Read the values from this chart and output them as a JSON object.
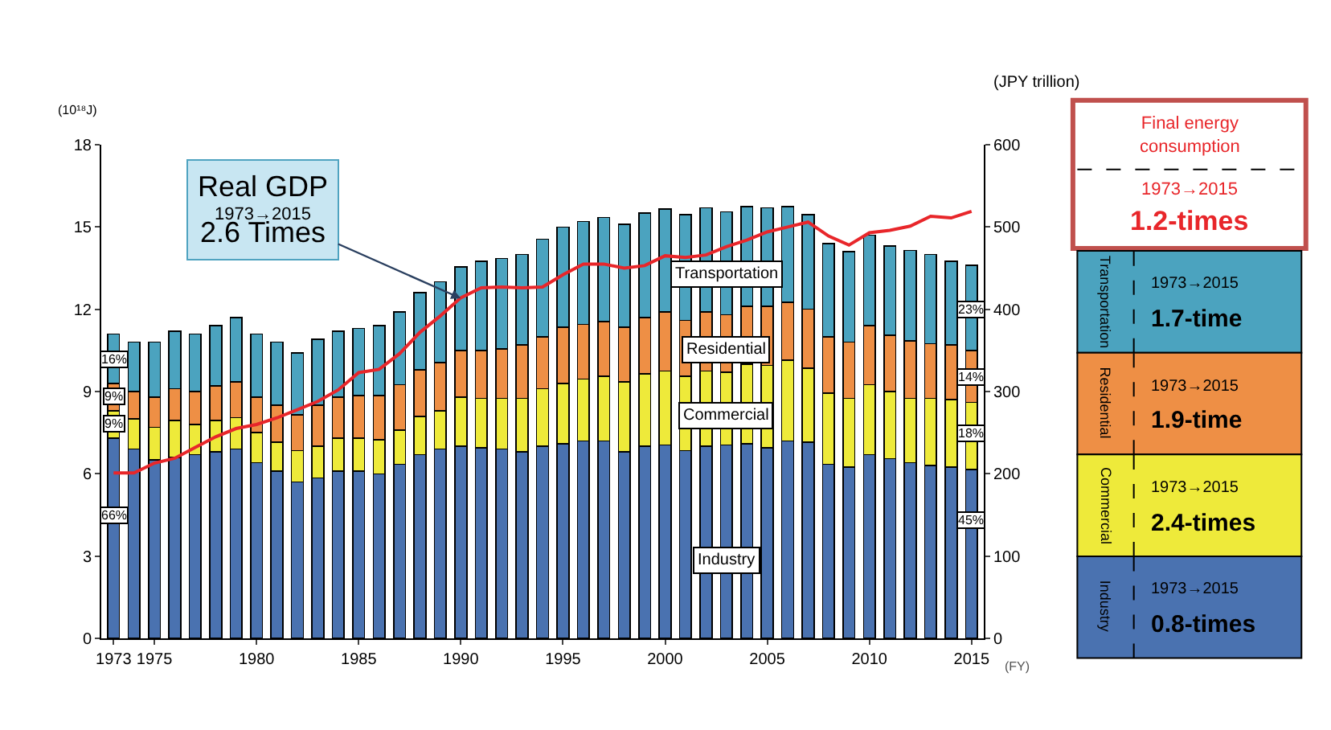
{
  "chart_data": {
    "type": "bar",
    "stacked": true,
    "ylabel": "(10¹⁸J)",
    "y2label": "(JPY trillion)",
    "xlabel": "(FY)",
    "x": [
      1973,
      1974,
      1975,
      1976,
      1977,
      1978,
      1979,
      1980,
      1981,
      1982,
      1983,
      1984,
      1985,
      1986,
      1987,
      1988,
      1989,
      1990,
      1991,
      1992,
      1993,
      1994,
      1995,
      1996,
      1997,
      1998,
      1999,
      2000,
      2001,
      2002,
      2003,
      2004,
      2005,
      2006,
      2007,
      2008,
      2009,
      2010,
      2011,
      2012,
      2013,
      2014,
      2015
    ],
    "series": [
      {
        "name": "Industry",
        "color": "#4a72b0",
        "values": [
          7.3,
          6.9,
          6.5,
          6.6,
          6.7,
          6.8,
          6.9,
          6.4,
          6.1,
          5.7,
          5.85,
          6.1,
          6.1,
          6.0,
          6.35,
          6.7,
          6.9,
          7.0,
          6.95,
          6.9,
          6.8,
          7.0,
          7.1,
          7.2,
          7.2,
          6.8,
          7.0,
          7.05,
          6.85,
          7.0,
          7.05,
          7.1,
          6.95,
          7.2,
          7.15,
          6.35,
          6.25,
          6.7,
          6.55,
          6.4,
          6.3,
          6.25,
          6.15
        ]
      },
      {
        "name": "Commercial",
        "color": "#eeea3a",
        "values": [
          1.0,
          1.1,
          1.2,
          1.35,
          1.1,
          1.15,
          1.15,
          1.1,
          1.05,
          1.15,
          1.15,
          1.2,
          1.2,
          1.25,
          1.25,
          1.4,
          1.4,
          1.8,
          1.8,
          1.85,
          1.95,
          2.1,
          2.2,
          2.25,
          2.35,
          2.55,
          2.65,
          2.7,
          2.7,
          2.75,
          2.65,
          2.9,
          3.0,
          2.95,
          2.7,
          2.6,
          2.5,
          2.55,
          2.45,
          2.35,
          2.45,
          2.45,
          2.45
        ]
      },
      {
        "name": "Residential",
        "color": "#ee8f45",
        "values": [
          1.0,
          1.0,
          1.1,
          1.15,
          1.2,
          1.25,
          1.3,
          1.3,
          1.35,
          1.3,
          1.5,
          1.5,
          1.55,
          1.6,
          1.65,
          1.7,
          1.75,
          1.7,
          1.75,
          1.8,
          1.95,
          1.9,
          2.05,
          2.0,
          2.0,
          2.0,
          2.05,
          2.15,
          2.05,
          2.15,
          2.1,
          2.1,
          2.15,
          2.1,
          2.15,
          2.05,
          2.05,
          2.15,
          2.05,
          2.1,
          2.0,
          2.0,
          1.9
        ]
      },
      {
        "name": "Transportation",
        "color": "#4ba3bf",
        "values": [
          1.8,
          1.8,
          2.0,
          2.1,
          2.1,
          2.2,
          2.35,
          2.3,
          2.3,
          2.25,
          2.4,
          2.4,
          2.45,
          2.55,
          2.65,
          2.8,
          2.95,
          3.05,
          3.25,
          3.3,
          3.3,
          3.55,
          3.65,
          3.75,
          3.8,
          3.75,
          3.8,
          3.75,
          3.85,
          3.8,
          3.75,
          3.65,
          3.6,
          3.5,
          3.45,
          3.4,
          3.3,
          3.3,
          3.25,
          3.3,
          3.25,
          3.05,
          3.1
        ]
      },
      {
        "type": "line",
        "axis": "y2",
        "color": "#e8262a",
        "values": [
          201,
          201,
          213,
          219,
          232,
          245,
          255,
          260,
          268,
          278,
          288,
          302,
          323,
          327,
          346,
          372,
          392,
          414,
          426,
          427,
          426,
          427,
          442,
          455,
          455,
          450,
          453,
          465,
          463,
          466,
          476,
          484,
          494,
          500,
          506,
          489,
          478,
          493,
          496,
          501,
          513,
          511,
          519
        ]
      }
    ],
    "xlim": [
      1972.4,
      2015.6
    ],
    "xticks": [
      1973,
      1975,
      1980,
      1985,
      1990,
      1995,
      2000,
      2005,
      2010,
      2015
    ],
    "ylim": [
      0,
      18
    ],
    "yticks": [
      0,
      3,
      6,
      9,
      12,
      15,
      18
    ],
    "y2lim": [
      0,
      600
    ],
    "y2ticks": [
      0,
      100,
      200,
      300,
      400,
      500,
      600
    ],
    "legend": false,
    "marker": "none",
    "line_style": "solid",
    "annotations": [
      {
        "text": "Real GDP\n1973→2015\n2.6 Times",
        "x": 1990,
        "y": 12.4
      },
      {
        "text": "16%",
        "x": 1973,
        "y": 10.2
      },
      {
        "text": "9%",
        "x": 1973,
        "y": 8.8
      },
      {
        "text": "9%",
        "x": 1973,
        "y": 7.8
      },
      {
        "text": "66%",
        "x": 1973,
        "y": 4.5
      },
      {
        "text": "23%",
        "x": 2015,
        "y": 12.0
      },
      {
        "text": "14%",
        "x": 2015,
        "y": 9.5
      },
      {
        "text": "18%",
        "x": 2015,
        "y": 7.5
      },
      {
        "text": "45%",
        "x": 2015,
        "y": 4.3
      },
      "Final energy consumption",
      "1973→2015",
      "1.2-times",
      "Transportation",
      "1973→2015",
      "1.7-time",
      "Residential",
      "1973→2015",
      "1.9-time",
      "Commercial",
      "1973→2015",
      "2.4-times",
      "Industry",
      "1973→2015",
      "0.8-times"
    ]
  }
}
